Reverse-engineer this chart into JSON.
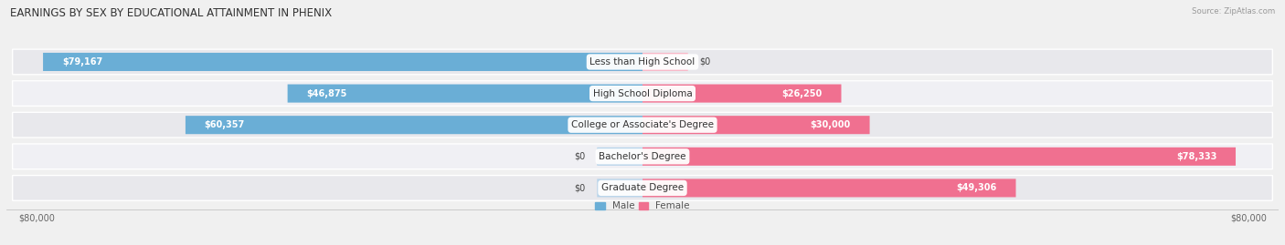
{
  "title": "EARNINGS BY SEX BY EDUCATIONAL ATTAINMENT IN PHENIX",
  "source": "Source: ZipAtlas.com",
  "categories": [
    "Less than High School",
    "High School Diploma",
    "College or Associate's Degree",
    "Bachelor's Degree",
    "Graduate Degree"
  ],
  "male_values": [
    79167,
    46875,
    60357,
    0,
    0
  ],
  "female_values": [
    0,
    26250,
    30000,
    78333,
    49306
  ],
  "male_labels": [
    "$79,167",
    "$46,875",
    "$60,357",
    "$0",
    "$0"
  ],
  "female_labels": [
    "$0",
    "$26,250",
    "$30,000",
    "$78,333",
    "$49,306"
  ],
  "male_color": "#6aaed6",
  "female_color": "#f07090",
  "male_color_light": "#b8d4ea",
  "female_color_light": "#f8b8c8",
  "max_value": 80000,
  "stub_value": 6000,
  "title_fontsize": 8.5,
  "label_fontsize": 7,
  "category_fontsize": 7.5,
  "axis_label_fontsize": 7,
  "legend_fontsize": 7.5
}
